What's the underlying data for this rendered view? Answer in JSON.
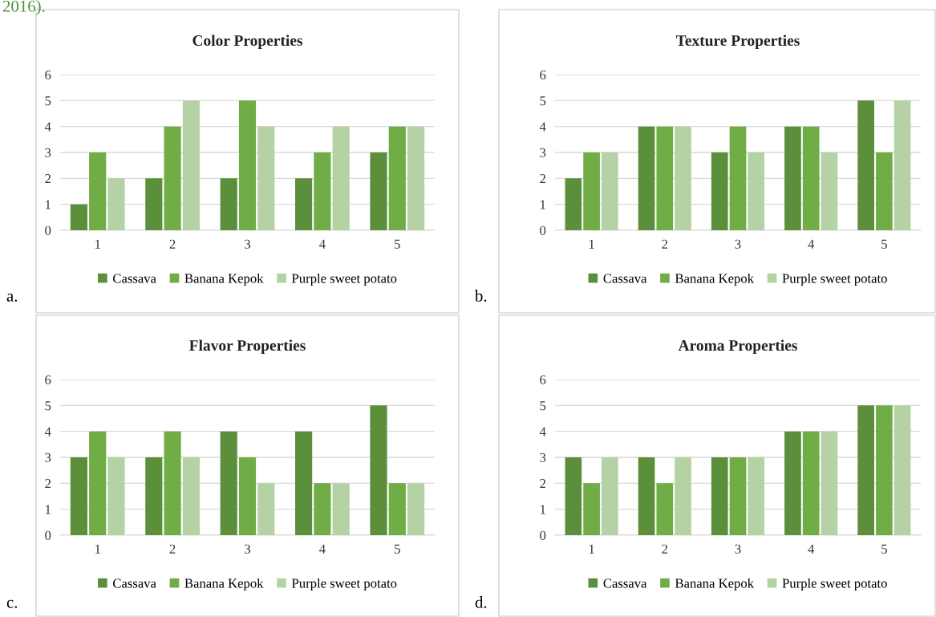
{
  "chart_data": [
    {
      "type": "bar",
      "title": "Color Properties",
      "categories": [
        "1",
        "2",
        "3",
        "4",
        "5"
      ],
      "series": [
        {
          "name": "Cassava",
          "color": "#5b8f3b",
          "values": [
            1,
            2,
            2,
            2,
            3
          ]
        },
        {
          "name": "Banana Kepok",
          "color": "#70ad47",
          "values": [
            3,
            4,
            5,
            3,
            4
          ]
        },
        {
          "name": "Purple sweet potato",
          "color": "#b5d2a4",
          "values": [
            2,
            5,
            4,
            4,
            4
          ]
        }
      ],
      "ylim": [
        0,
        6
      ],
      "yticks": [
        0,
        1,
        2,
        3,
        4,
        5,
        6
      ],
      "grid": "y",
      "legend": "bottom",
      "annotations": [
        "2016).",
        "a."
      ]
    },
    {
      "type": "bar",
      "title": "Texture Properties",
      "categories": [
        "1",
        "2",
        "3",
        "4",
        "5"
      ],
      "series": [
        {
          "name": "Cassava",
          "color": "#5b8f3b",
          "values": [
            2,
            4,
            3,
            4,
            5
          ]
        },
        {
          "name": "Banana Kepok",
          "color": "#70ad47",
          "values": [
            3,
            4,
            4,
            4,
            3
          ]
        },
        {
          "name": "Purple sweet potato",
          "color": "#b5d2a4",
          "values": [
            3,
            4,
            3,
            3,
            5
          ]
        }
      ],
      "ylim": [
        0,
        6
      ],
      "yticks": [
        0,
        1,
        2,
        3,
        4,
        5,
        6
      ],
      "grid": "y",
      "legend": "bottom",
      "annotations": [
        "b."
      ]
    },
    {
      "type": "bar",
      "title": "Flavor Properties",
      "categories": [
        "1",
        "2",
        "3",
        "4",
        "5"
      ],
      "series": [
        {
          "name": "Cassava",
          "color": "#5b8f3b",
          "values": [
            3,
            3,
            4,
            4,
            5
          ]
        },
        {
          "name": "Banana Kepok",
          "color": "#70ad47",
          "values": [
            4,
            4,
            3,
            2,
            2
          ]
        },
        {
          "name": "Purple sweet potato",
          "color": "#b5d2a4",
          "values": [
            3,
            3,
            2,
            2,
            2
          ]
        }
      ],
      "ylim": [
        0,
        6
      ],
      "yticks": [
        0,
        1,
        2,
        3,
        4,
        5,
        6
      ],
      "grid": "y",
      "legend": "bottom",
      "annotations": [
        "c."
      ]
    },
    {
      "type": "bar",
      "title": "Aroma Properties",
      "categories": [
        "1",
        "2",
        "3",
        "4",
        "5"
      ],
      "series": [
        {
          "name": "Cassava",
          "color": "#5b8f3b",
          "values": [
            3,
            3,
            3,
            4,
            5
          ]
        },
        {
          "name": "Banana Kepok",
          "color": "#70ad47",
          "values": [
            2,
            2,
            3,
            4,
            5
          ]
        },
        {
          "name": "Purple sweet potato",
          "color": "#b5d2a4",
          "values": [
            3,
            3,
            3,
            4,
            5
          ]
        }
      ],
      "ylim": [
        0,
        6
      ],
      "yticks": [
        0,
        1,
        2,
        3,
        4,
        5,
        6
      ],
      "grid": "y",
      "legend": "bottom",
      "annotations": [
        "d."
      ]
    }
  ]
}
